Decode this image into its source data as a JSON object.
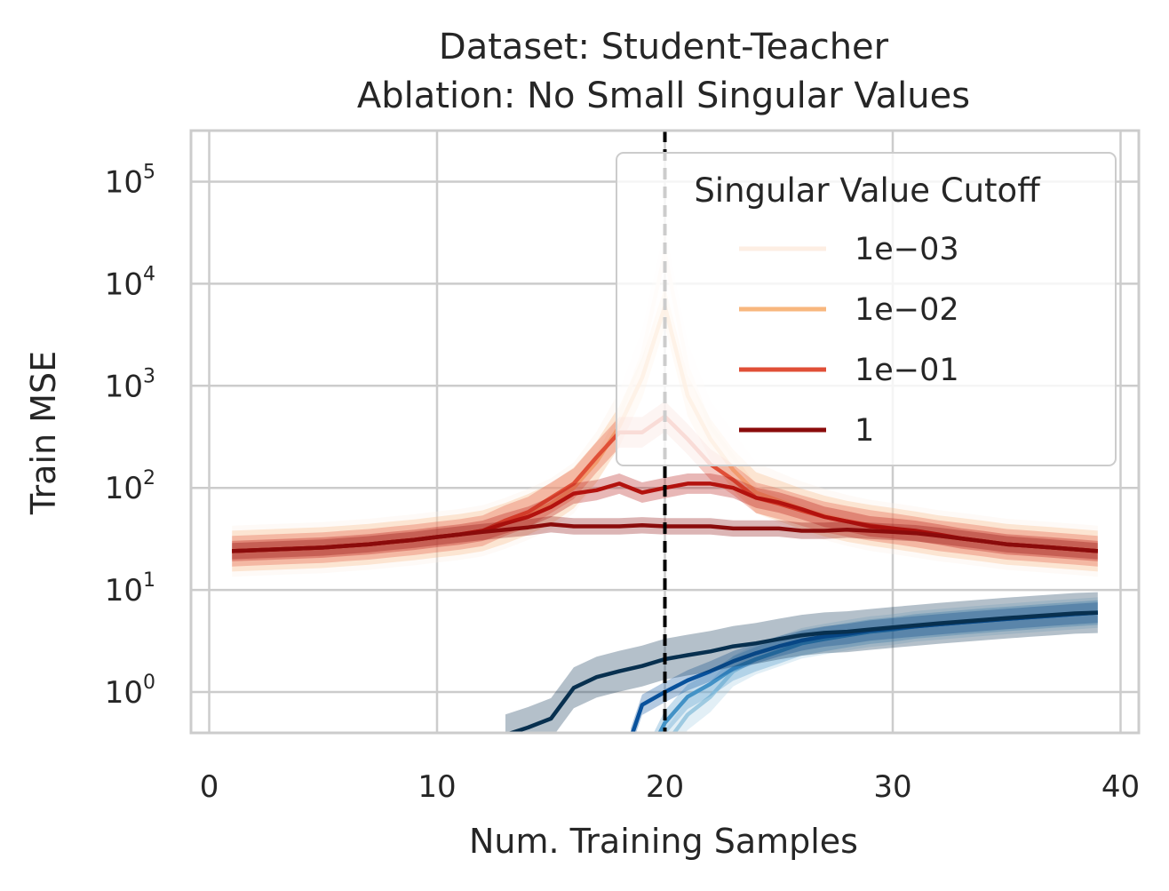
{
  "chart_data": {
    "type": "line",
    "title_line1": "Dataset: Student-Teacher",
    "title_line2": "Ablation: No Small Singular Values",
    "xlabel": "Num. Training Samples",
    "ylabel": "Train MSE",
    "xlim": [
      -0.8,
      40.8
    ],
    "ylim_log10": [
      -0.4,
      5.5
    ],
    "y_scale": "log",
    "x_ticks": [
      "0",
      "10",
      "20",
      "30",
      "40"
    ],
    "x_tick_values": [
      0,
      10,
      20,
      30,
      40
    ],
    "y_tick_base": "10",
    "y_tick_exponents": [
      "0",
      "1",
      "2",
      "3",
      "4",
      "5"
    ],
    "vline_x": 20,
    "grid": true,
    "legend": {
      "title": "Singular Value Cutoff",
      "placement": "top-right",
      "entries": [
        {
          "label": "1e−03",
          "color": "#fdeee3"
        },
        {
          "label": "1e−02",
          "color": "#f8b77e"
        },
        {
          "label": "1e−01",
          "color": "#e04f37"
        },
        {
          "label": "1",
          "color": "#8a0b0b"
        }
      ]
    },
    "series": [
      {
        "color": "#fdeee3",
        "opacity": 0.9,
        "band": 0.25,
        "group": "test",
        "x": [
          1,
          2,
          3,
          4,
          5,
          6,
          7,
          8,
          9,
          10,
          11,
          12,
          13,
          14,
          15,
          16,
          17,
          18,
          19,
          20,
          21,
          22,
          23,
          24,
          25,
          26,
          27,
          28,
          29,
          30,
          31,
          32,
          33,
          34,
          35,
          36,
          37,
          38,
          39
        ],
        "y": [
          24,
          24.5,
          25,
          25.5,
          26,
          27,
          28,
          29.5,
          31,
          33,
          35,
          38,
          45,
          55,
          70,
          100,
          200,
          500,
          2000,
          20000,
          1500,
          400,
          200,
          100,
          80,
          65,
          55,
          48,
          43,
          40,
          37,
          34,
          32,
          30,
          28,
          27,
          26,
          25,
          24
        ]
      },
      {
        "color": "#f8b77e",
        "opacity": 0.9,
        "band": 0.2,
        "group": "test",
        "x": [
          1,
          2,
          3,
          4,
          5,
          6,
          7,
          8,
          9,
          10,
          11,
          12,
          13,
          14,
          15,
          16,
          17,
          18,
          19,
          20,
          21,
          22,
          23,
          24,
          25,
          26,
          27,
          28,
          29,
          30,
          31,
          32,
          33,
          34,
          35,
          36,
          37,
          38,
          39
        ],
        "y": [
          24,
          24.5,
          25,
          25.5,
          26,
          27,
          28,
          29.5,
          31,
          33,
          35,
          38,
          45,
          55,
          70,
          100,
          180,
          400,
          1200,
          6000,
          800,
          300,
          150,
          90,
          75,
          62,
          53,
          47,
          43,
          40,
          37,
          34,
          32,
          30,
          28,
          27,
          26,
          25,
          24
        ]
      },
      {
        "color": "#e04f37",
        "opacity": 1,
        "band": 0.15,
        "group": "test",
        "x": [
          1,
          2,
          3,
          4,
          5,
          6,
          7,
          8,
          9,
          10,
          11,
          12,
          13,
          14,
          15,
          16,
          17,
          18,
          19,
          20,
          21,
          22,
          23,
          24,
          25,
          26,
          27,
          28,
          29,
          30,
          31,
          32,
          33,
          34,
          35,
          36,
          37,
          38,
          39
        ],
        "y": [
          24,
          24.5,
          25,
          25.5,
          26,
          27,
          28,
          29.5,
          31,
          33,
          35,
          38,
          48,
          58,
          80,
          110,
          200,
          350,
          350,
          500,
          300,
          170,
          120,
          80,
          70,
          60,
          52,
          47,
          43,
          40,
          37,
          34,
          32,
          30,
          28,
          27,
          26,
          25,
          24
        ]
      },
      {
        "color": "#b3120e",
        "opacity": 1,
        "band": 0.1,
        "group": "test",
        "x": [
          1,
          2,
          3,
          4,
          5,
          6,
          7,
          8,
          9,
          10,
          11,
          12,
          13,
          14,
          15,
          16,
          17,
          18,
          19,
          20,
          21,
          22,
          23,
          24,
          25,
          26,
          27,
          28,
          29,
          30,
          31,
          32,
          33,
          34,
          35,
          36,
          37,
          38,
          39
        ],
        "y": [
          24,
          24.5,
          25,
          25.5,
          26,
          27,
          28,
          29.5,
          31,
          33,
          35,
          38,
          45,
          52,
          65,
          88,
          95,
          110,
          90,
          100,
          110,
          110,
          100,
          80,
          72,
          62,
          52,
          47,
          42,
          40,
          38,
          35,
          32,
          30,
          28,
          27,
          26,
          25,
          24
        ]
      },
      {
        "color": "#8a0b0b",
        "opacity": 1,
        "band": 0.08,
        "group": "test",
        "x": [
          1,
          2,
          3,
          4,
          5,
          6,
          7,
          8,
          9,
          10,
          11,
          12,
          13,
          14,
          15,
          16,
          17,
          18,
          19,
          20,
          21,
          22,
          23,
          24,
          25,
          26,
          27,
          28,
          29,
          30,
          31,
          32,
          33,
          34,
          35,
          36,
          37,
          38,
          39
        ],
        "y": [
          24,
          24.5,
          25,
          25.5,
          26,
          27,
          28,
          29.5,
          31,
          33,
          35,
          37,
          39,
          41,
          44,
          42,
          42,
          42,
          43,
          42,
          42,
          42,
          40,
          40,
          40,
          38,
          38,
          39,
          38,
          37,
          36,
          34,
          32,
          30,
          28,
          27,
          26,
          25,
          24
        ]
      },
      {
        "color": "#9ecae1",
        "opacity": 1,
        "band": 0.15,
        "group": "train",
        "x": [
          20,
          21,
          22,
          23,
          24,
          25,
          26,
          27,
          28,
          29,
          30,
          31,
          32,
          33,
          34,
          35,
          36,
          37,
          38,
          39
        ],
        "y": [
          0.3,
          0.6,
          0.9,
          1.6,
          2.1,
          2.5,
          3.0,
          3.3,
          3.6,
          3.9,
          4.1,
          4.4,
          4.6,
          4.8,
          5.0,
          5.2,
          5.4,
          5.6,
          5.8,
          6.0
        ]
      },
      {
        "color": "#4292c6",
        "opacity": 1,
        "band": 0.12,
        "group": "train",
        "x": [
          19.5,
          20,
          21,
          22,
          23,
          24,
          25,
          26,
          27,
          28,
          29,
          30,
          31,
          32,
          33,
          34,
          35,
          36,
          37,
          38,
          39
        ],
        "y": [
          0.3,
          0.5,
          0.9,
          1.2,
          1.7,
          2.1,
          2.5,
          3.0,
          3.3,
          3.6,
          3.9,
          4.1,
          4.4,
          4.6,
          4.8,
          5.0,
          5.2,
          5.4,
          5.6,
          5.8,
          6.0
        ]
      },
      {
        "color": "#08519c",
        "opacity": 1,
        "band": 0.1,
        "group": "train",
        "x": [
          18.5,
          19,
          20,
          21,
          22,
          23,
          24,
          25,
          26,
          27,
          28,
          29,
          30,
          31,
          32,
          33,
          34,
          35,
          36,
          37,
          38,
          39
        ],
        "y": [
          0.35,
          0.75,
          1.0,
          1.3,
          1.6,
          2.0,
          2.4,
          2.8,
          3.2,
          3.5,
          3.7,
          4.0,
          4.2,
          4.4,
          4.6,
          4.8,
          5.0,
          5.2,
          5.4,
          5.6,
          5.8,
          6.0
        ]
      },
      {
        "color": "#08304f",
        "opacity": 1,
        "band": 0.2,
        "group": "train",
        "x": [
          13,
          14,
          15,
          16,
          17,
          18,
          19,
          20,
          21,
          22,
          23,
          24,
          25,
          26,
          27,
          28,
          29,
          30,
          31,
          32,
          33,
          34,
          35,
          36,
          37,
          38,
          39
        ],
        "y": [
          0.38,
          0.45,
          0.55,
          1.1,
          1.4,
          1.6,
          1.8,
          2.1,
          2.3,
          2.5,
          2.8,
          3.0,
          3.3,
          3.6,
          3.8,
          3.9,
          4.1,
          4.3,
          4.5,
          4.7,
          4.9,
          5.1,
          5.3,
          5.5,
          5.7,
          5.9,
          6.0
        ]
      }
    ]
  }
}
